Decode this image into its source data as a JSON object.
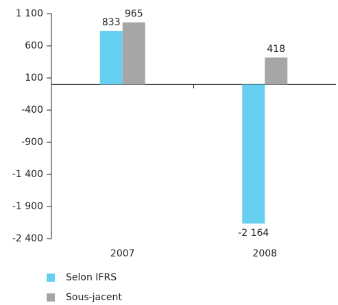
{
  "chart_data": {
    "type": "bar",
    "categories": [
      "2007",
      "2008"
    ],
    "series": [
      {
        "name": "Selon IFRS",
        "color": "#66cff0",
        "values": [
          833,
          -2164
        ],
        "value_labels": [
          "833",
          "-2 164"
        ]
      },
      {
        "name": "Sous-jacent",
        "color": "#a6a6a6",
        "values": [
          965,
          418
        ],
        "value_labels": [
          "965",
          "418"
        ]
      }
    ],
    "ylim": [
      -2400,
      1100
    ],
    "yticks": [
      {
        "value": 1100,
        "label": "1 100"
      },
      600,
      100,
      -400,
      -900,
      {
        "value": -1400,
        "label": "-1 400"
      },
      {
        "value": -1900,
        "label": "-1 900"
      },
      {
        "value": -2400,
        "label": "-2 400"
      }
    ],
    "legend": "bottom-left"
  }
}
